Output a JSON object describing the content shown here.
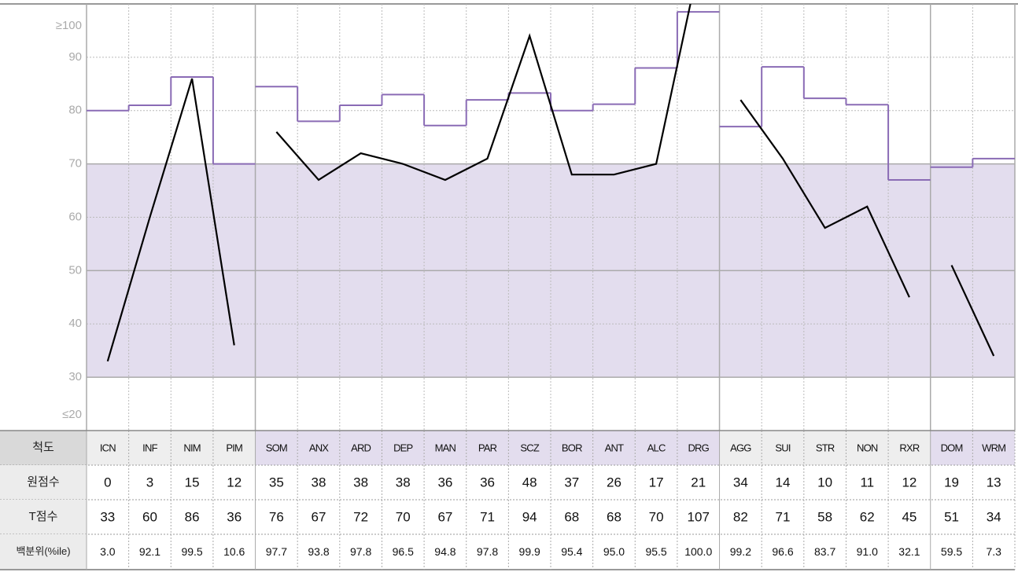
{
  "chart_data": {
    "type": "profile",
    "categories": [
      "ICN",
      "INF",
      "NIM",
      "PIM",
      "SOM",
      "ANX",
      "ARD",
      "DEP",
      "MAN",
      "PAR",
      "SCZ",
      "BOR",
      "ANT",
      "ALC",
      "DRG",
      "AGG",
      "SUI",
      "STR",
      "NON",
      "RXR",
      "DOM",
      "WRM"
    ],
    "group_breaks": [
      4,
      15,
      20
    ],
    "ylim": [
      20,
      100
    ],
    "yticks": [
      {
        "value": 20,
        "label": "≤20"
      },
      30,
      40,
      50,
      60,
      70,
      80,
      90,
      {
        "value": 100,
        "label": "≥100"
      }
    ],
    "major_yticks": [
      30,
      50,
      70
    ],
    "shaded_range": [
      30,
      70
    ],
    "shade_color": "#e3ddee",
    "norm_color": "#8a6bb5",
    "line_color": "#000000",
    "norm_values": [
      80,
      81,
      86.3,
      70,
      84.5,
      78,
      81,
      83,
      77.2,
      82,
      83.3,
      80,
      81.2,
      88,
      98.5,
      77,
      88.2,
      82.3,
      81.1,
      67,
      69.4,
      71
    ],
    "row_labels": [
      "척도",
      "원점수",
      "T점수",
      "백분위(%ile)"
    ],
    "raw_scores": [
      0,
      3,
      15,
      12,
      35,
      38,
      38,
      38,
      36,
      36,
      48,
      37,
      26,
      17,
      21,
      34,
      14,
      10,
      11,
      12,
      19,
      13
    ],
    "t_scores": [
      33,
      60,
      86,
      36,
      76,
      67,
      72,
      70,
      67,
      71,
      94,
      68,
      68,
      70,
      107,
      82,
      71,
      58,
      62,
      45,
      51,
      34
    ],
    "percentiles": [
      "3.0",
      "92.1",
      "99.5",
      "10.6",
      "97.7",
      "93.8",
      "97.8",
      "96.5",
      "94.8",
      "97.8",
      "99.9",
      "95.4",
      "95.0",
      "95.5",
      "100.0",
      "99.2",
      "96.6",
      "83.7",
      "91.0",
      "32.1",
      "59.5",
      "7.3"
    ]
  }
}
